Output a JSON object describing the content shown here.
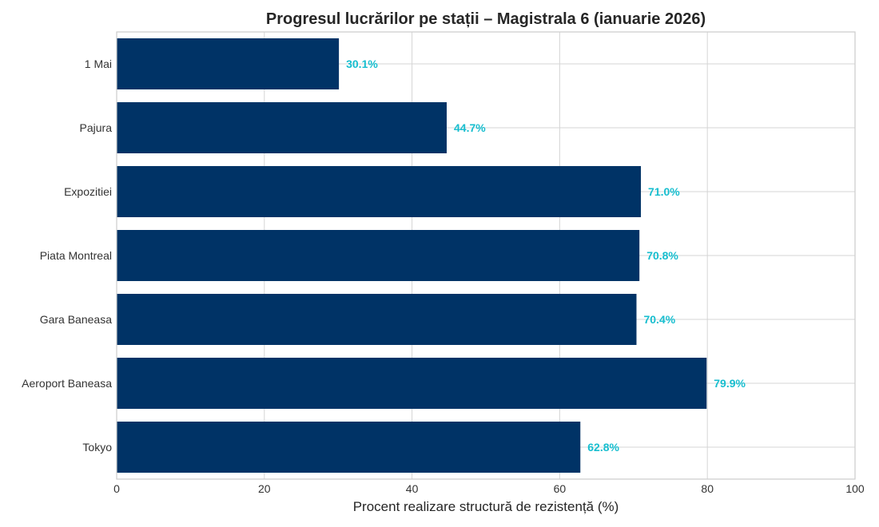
{
  "chart_data": {
    "type": "bar",
    "orientation": "horizontal",
    "title": "Progresul lucrărilor pe stații – Magistrala 6 (ianuarie 2026)",
    "xlabel": "Procent realizare structură de rezistență (%)",
    "ylabel": "",
    "xlim": [
      0,
      100
    ],
    "xticks": [
      "0",
      "20",
      "40",
      "60",
      "80",
      "100"
    ],
    "grid": true,
    "categories": [
      "1 Mai",
      "Pajura",
      "Expozitiei",
      "Piata Montreal",
      "Gara Baneasa",
      "Aeroport Baneasa",
      "Tokyo"
    ],
    "values": [
      30.1,
      44.7,
      71.0,
      70.8,
      70.4,
      79.9,
      62.8
    ],
    "data_labels": [
      "30.1%",
      "44.7%",
      "71.0%",
      "70.8%",
      "70.4%",
      "79.9%",
      "62.8%"
    ],
    "colors": {
      "bar": "#003366",
      "label": "#17becf",
      "grid": "#d5d5d5"
    }
  }
}
